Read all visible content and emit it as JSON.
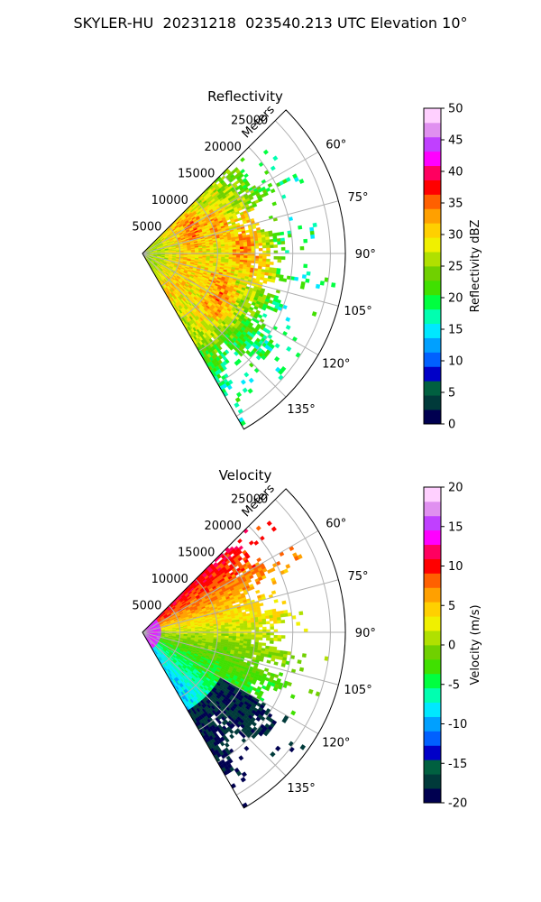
{
  "figure": {
    "title": "SKYLER-HU  20231218  023540.213 UTC Elevation 10°"
  },
  "chart_data": [
    {
      "type": "heatmap",
      "projection": "polar-sector",
      "title": "Reflectivity",
      "range_label": "Meters",
      "range_ticks": [
        5000,
        10000,
        15000,
        20000,
        25000
      ],
      "range_max": 27000,
      "azimuth_range": [
        45,
        150
      ],
      "azimuth_ticks": [
        60,
        75,
        90,
        105,
        120,
        135
      ],
      "azimuth_tick_labels": [
        "60°",
        "75°",
        "90°",
        "105°",
        "120°",
        "135°"
      ],
      "grid": true,
      "colorbar": {
        "label": "Reflectivity dBZ",
        "range": [
          0,
          50
        ],
        "ticks": [
          0,
          5,
          10,
          15,
          20,
          25,
          30,
          35,
          40,
          45,
          50
        ],
        "colors": [
          "#000050",
          "#003a3a",
          "#006040",
          "#0000c8",
          "#0060ff",
          "#00a0ff",
          "#00e8ff",
          "#00ffb0",
          "#00ff40",
          "#40e000",
          "#70d000",
          "#b0e000",
          "#f0f000",
          "#ffd000",
          "#ffa000",
          "#ff6000",
          "#ff0000",
          "#ff0060",
          "#ff00ff",
          "#c040ff",
          "#e090f0",
          "#ffd0ff"
        ]
      },
      "observations": {
        "coverage_end_m": [
          15500,
          17000,
          17500,
          17000,
          16500,
          19000,
          18500,
          15000,
          14500,
          15500,
          16000,
          20000,
          18500,
          16500,
          18500,
          16500,
          21000,
          17000,
          16000,
          20500,
          19500,
          17000,
          18500,
          20000,
          21500,
          21000,
          20500,
          18500,
          17000,
          19000,
          21500,
          22000
        ],
        "pattern": [
          [
            0.0,
            25,
            25
          ],
          [
            2000,
            26,
            23
          ],
          [
            6000,
            31,
            20
          ],
          [
            10000,
            27,
            21
          ],
          [
            14000,
            25,
            19
          ],
          [
            20000,
            18,
            18
          ]
        ],
        "embedded_cells": [
          {
            "az": 65,
            "r": 7500,
            "dbz": 34
          },
          {
            "az": 70,
            "r": 10500,
            "dbz": 33
          },
          {
            "az": 79,
            "r": 14500,
            "dbz": 32
          },
          {
            "az": 86,
            "r": 13500,
            "dbz": 34
          },
          {
            "az": 95,
            "r": 15500,
            "dbz": 32
          },
          {
            "az": 112,
            "r": 11000,
            "dbz": 33
          },
          {
            "az": 122,
            "r": 12000,
            "dbz": 34
          }
        ]
      }
    },
    {
      "type": "heatmap",
      "projection": "polar-sector",
      "title": "Velocity",
      "range_label": "Meters",
      "range_ticks": [
        5000,
        10000,
        15000,
        20000,
        25000
      ],
      "range_max": 27000,
      "azimuth_range": [
        45,
        150
      ],
      "azimuth_ticks": [
        60,
        75,
        90,
        105,
        120,
        135
      ],
      "azimuth_tick_labels": [
        "60°",
        "75°",
        "90°",
        "105°",
        "120°",
        "135°"
      ],
      "grid": true,
      "colorbar": {
        "label": "Velocity (m/s)",
        "range": [
          -20,
          20
        ],
        "ticks": [
          -20,
          -15,
          -10,
          -5,
          0,
          5,
          10,
          15,
          20
        ],
        "colors": [
          "#000050",
          "#003a3a",
          "#006040",
          "#0000c8",
          "#0060ff",
          "#00a0ff",
          "#00e8ff",
          "#00ffb0",
          "#00ff40",
          "#40e000",
          "#70d000",
          "#b0e000",
          "#f0f000",
          "#ffd000",
          "#ffa000",
          "#ff6000",
          "#ff0000",
          "#ff0060",
          "#ff00ff",
          "#c040ff",
          "#e090f0",
          "#ffd0ff"
        ]
      },
      "observations": {
        "near_north_m_s": 11,
        "near_east_m_s": 1,
        "near_south_m_s": -9,
        "near_range_m_s": 15,
        "far_south_m_s": -18
      }
    }
  ]
}
